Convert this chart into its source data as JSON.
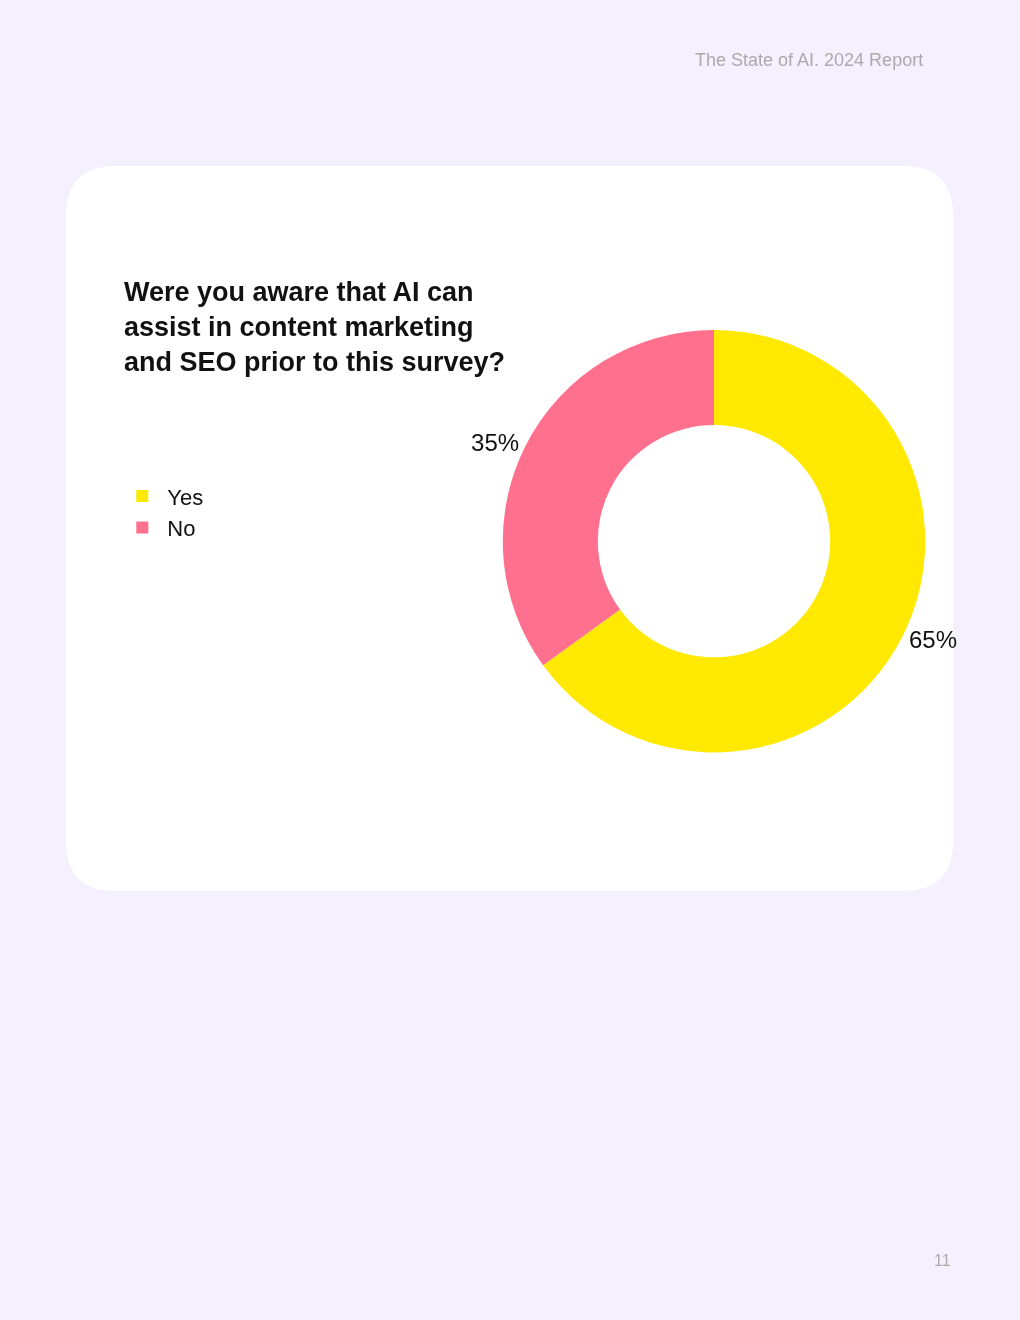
{
  "chart_data": {
    "type": "donut",
    "title": "Were you aware that AI can\nassist in content marketing\nand SEO prior to this survey?",
    "categories": [
      "Yes",
      "No"
    ],
    "values": [
      65,
      35
    ],
    "colors": [
      "#ffe900",
      "#ff6f8e"
    ],
    "value_labels": [
      "65%",
      "35%"
    ],
    "legend": "left",
    "annotations": [
      "The State of AI. 2024 Report",
      "11"
    ]
  }
}
